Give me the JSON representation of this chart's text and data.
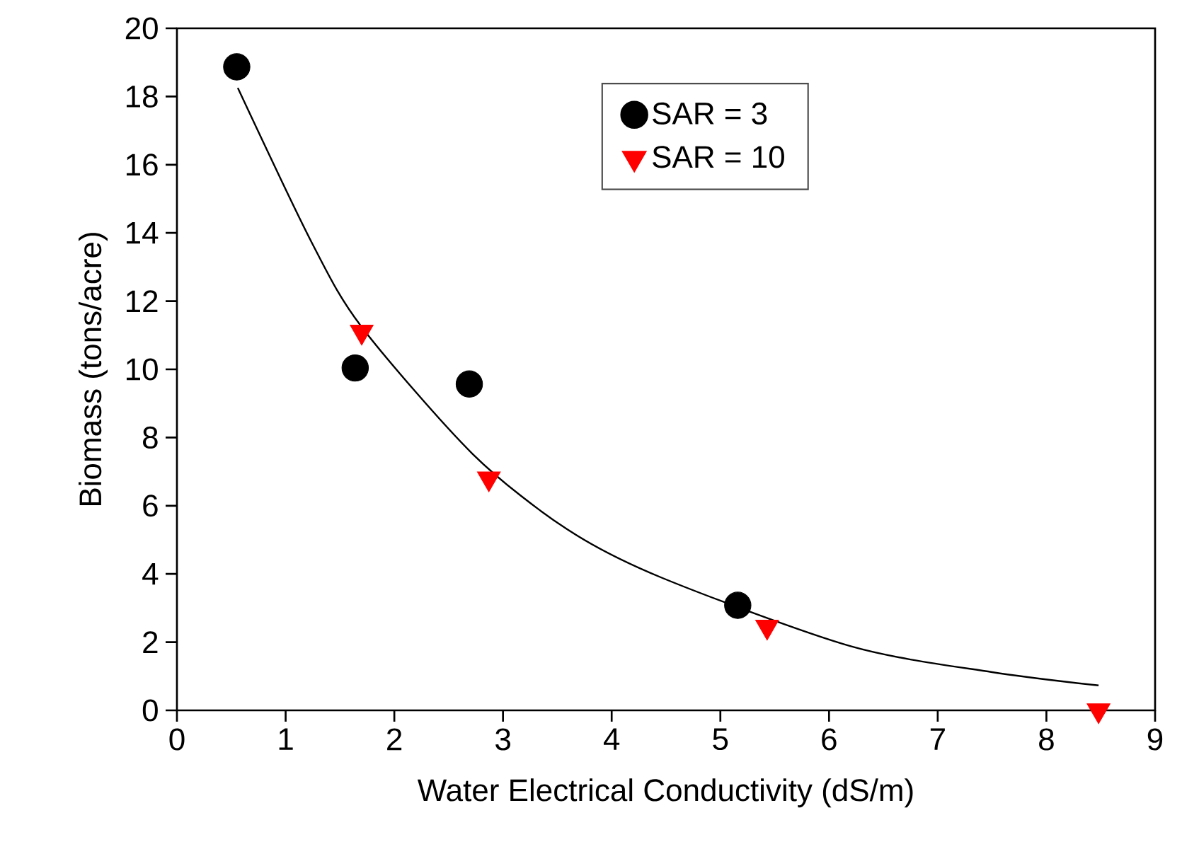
{
  "chart_data": {
    "type": "scatter",
    "xlabel": "Water Electrical Conductivity (dS/m)",
    "ylabel": "Biomass  (tons/acre)",
    "xlim": [
      0,
      9
    ],
    "xticks": [
      0,
      1,
      2,
      3,
      4,
      5,
      6,
      7,
      8,
      9
    ],
    "ylim": [
      0,
      20
    ],
    "yticks": [
      0,
      2,
      4,
      6,
      8,
      10,
      12,
      14,
      16,
      18,
      20
    ],
    "grid": false,
    "legend": "top",
    "series": [
      {
        "name": "SAR = 3",
        "color": "#000000",
        "marker": "circle",
        "x": [
          0.55,
          1.64,
          2.69,
          5.16
        ],
        "values": [
          18.87,
          10.04,
          9.57,
          3.08
        ]
      },
      {
        "name": "SAR = 10",
        "color": "#ff0000",
        "marker": "triangle",
        "x": [
          1.7,
          2.87,
          5.43,
          8.48
        ],
        "values": [
          11.1,
          6.8,
          2.45,
          0
        ]
      },
      {
        "type": "line",
        "color": "#000000",
        "line_style": "solid",
        "x": [
          0.56,
          1.24,
          1.7,
          2.72,
          3.59,
          4.46,
          6.2,
          7.5,
          8.48
        ],
        "values": [
          18.25,
          13.72,
          11.24,
          7.52,
          5.31,
          3.89,
          1.88,
          1.12,
          0.73
        ]
      }
    ]
  }
}
